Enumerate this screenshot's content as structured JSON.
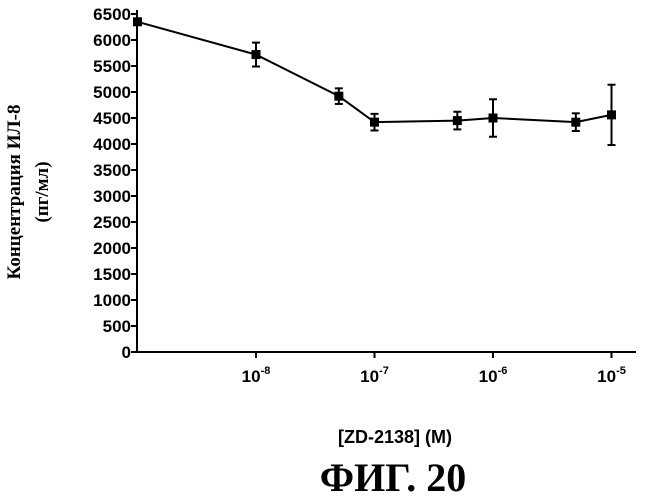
{
  "chart_data": {
    "type": "line",
    "xlabel": "[ZD-2138] (M)",
    "ylabel_line1": "Концентрация ИЛ-8",
    "ylabel_line2": "(пг/мл)",
    "caption": "ФИГ. 20",
    "x_scale": "log",
    "ylim": [
      0,
      6500
    ],
    "y_ticks": [
      "0",
      "500",
      "1000",
      "1500",
      "2000",
      "2500",
      "3000",
      "3500",
      "4000",
      "4500",
      "5000",
      "5500",
      "6000",
      "6500"
    ],
    "x_ticks": [
      {
        "label_base": "10",
        "label_exp": "-8",
        "value": 1e-08
      },
      {
        "label_base": "10",
        "label_exp": "-7",
        "value": 1e-07
      },
      {
        "label_base": "10",
        "label_exp": "-6",
        "value": 1e-06
      },
      {
        "label_base": "10",
        "label_exp": "-5",
        "value": 1e-05
      }
    ],
    "grid": false,
    "legend": "none",
    "color": "#000000",
    "series": [
      {
        "points": [
          {
            "x": 1e-09,
            "y": 6350,
            "err": 0
          },
          {
            "x": 1e-08,
            "y": 5720,
            "err": 230
          },
          {
            "x": 5e-08,
            "y": 4920,
            "err": 150
          },
          {
            "x": 1e-07,
            "y": 4420,
            "err": 160
          },
          {
            "x": 5e-07,
            "y": 4450,
            "err": 170
          },
          {
            "x": 1e-06,
            "y": 4500,
            "err": 360
          },
          {
            "x": 5e-06,
            "y": 4420,
            "err": 170
          },
          {
            "x": 1e-05,
            "y": 4560,
            "err": 580
          }
        ]
      }
    ]
  }
}
